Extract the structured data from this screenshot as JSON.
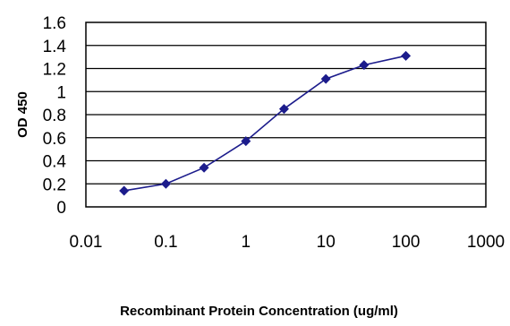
{
  "chart_data": {
    "type": "line",
    "title": "",
    "xlabel": "Recombinant Protein Concentration (ug/ml)",
    "ylabel": "OD 450",
    "x_scale": "log",
    "xlim": [
      0.01,
      1000
    ],
    "ylim": [
      0,
      1.6
    ],
    "x_ticks": [
      "0.01",
      "0.1",
      "1",
      "10",
      "100",
      "1000"
    ],
    "y_ticks": [
      "0",
      "0.2",
      "0.4",
      "0.6",
      "0.8",
      "1",
      "1.2",
      "1.4",
      "1.6"
    ],
    "grid": "horizontal",
    "colors": {
      "series": "#1c1c8c",
      "grid": "#000000",
      "plot_bg": "#ffffff"
    },
    "series": [
      {
        "x": [
          0.03,
          0.1,
          0.3,
          1,
          3,
          10,
          30,
          100
        ],
        "y": [
          0.14,
          0.2,
          0.34,
          0.57,
          0.85,
          1.11,
          1.23,
          1.31
        ]
      }
    ]
  }
}
